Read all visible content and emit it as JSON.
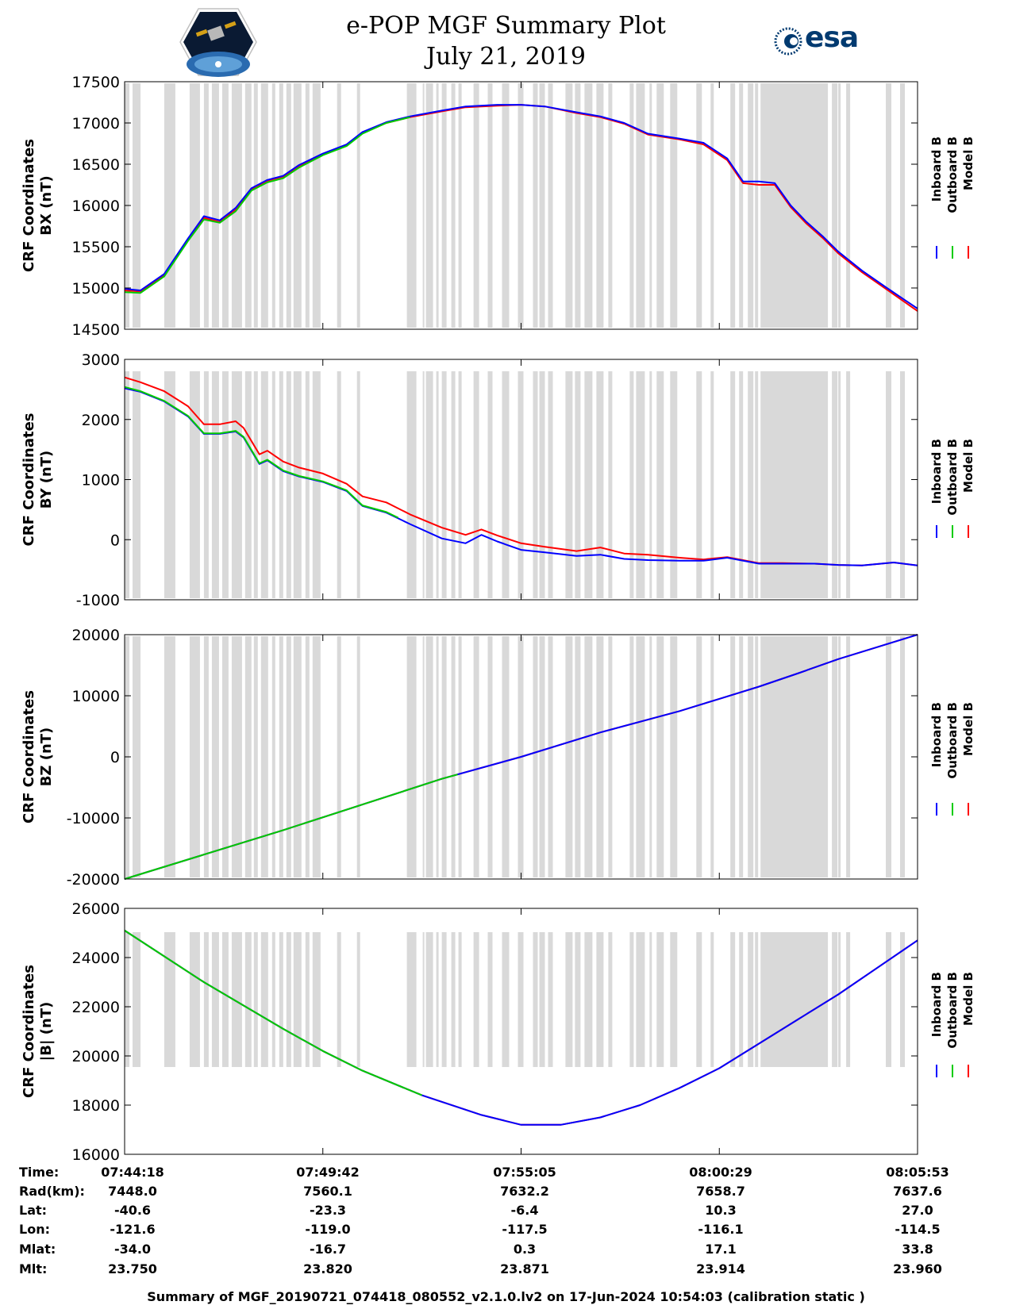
{
  "header": {
    "title": "e-POP MGF Summary Plot",
    "date": "July 21, 2019",
    "logo_left_icon": "cassiope-mission-logo-icon",
    "logo_right_text": "esa",
    "logo_right_icon": "esa-logo-icon"
  },
  "colors": {
    "inboard": "#0000ff",
    "outboard": "#00cc00",
    "model": "#ff0000",
    "shading": "#d9d9d9"
  },
  "chart_data": [
    {
      "type": "line",
      "ylabel1": "CRF Coordinates",
      "ylabel2": "BX (nT)",
      "yticks": [
        "14500",
        "15000",
        "15500",
        "16000",
        "16500",
        "17000",
        "17500"
      ],
      "ylim": [
        14500,
        17500
      ],
      "legend": [
        "Inboard B",
        "Outboard B",
        "Model B"
      ],
      "x": [
        0,
        0.02,
        0.05,
        0.08,
        0.1,
        0.12,
        0.14,
        0.16,
        0.18,
        0.2,
        0.22,
        0.25,
        0.28,
        0.3,
        0.33,
        0.36,
        0.4,
        0.43,
        0.47,
        0.5,
        0.53,
        0.57,
        0.6,
        0.63,
        0.66,
        0.7,
        0.73,
        0.76,
        0.78,
        0.8,
        0.82,
        0.84,
        0.86,
        0.88,
        0.9,
        0.93,
        0.96,
        1.0
      ],
      "series": [
        {
          "name": "Model B",
          "values": [
            14970,
            14960,
            15150,
            15580,
            15850,
            15800,
            15950,
            16200,
            16300,
            16350,
            16480,
            16620,
            16730,
            16880,
            17000,
            17070,
            17140,
            17190,
            17210,
            17220,
            17200,
            17120,
            17070,
            16990,
            16860,
            16800,
            16740,
            16550,
            16270,
            16250,
            16250,
            15980,
            15780,
            15610,
            15420,
            15190,
            14990,
            14720
          ]
        },
        {
          "name": "Inboard B",
          "values": [
            14990,
            14970,
            15170,
            15600,
            15870,
            15820,
            15970,
            16210,
            16310,
            16360,
            16490,
            16630,
            16740,
            16890,
            17010,
            17080,
            17150,
            17200,
            17220,
            17220,
            17200,
            17130,
            17080,
            17000,
            16870,
            16810,
            16760,
            16570,
            16290,
            16290,
            16270,
            16000,
            15800,
            15630,
            15440,
            15210,
            15010,
            14750
          ]
        },
        {
          "name": "Outboard B",
          "values": [
            14950,
            14940,
            15140,
            15570,
            15830,
            15790,
            15930,
            16180,
            16280,
            16330,
            16460,
            16610,
            16720,
            16870,
            17000,
            17070,
            17140,
            17190,
            17210,
            17220,
            17200,
            17120,
            17070,
            16990,
            16860,
            16800,
            16740,
            16550,
            16270,
            16250,
            16250,
            15980,
            15780,
            15610,
            15420,
            15190,
            14990,
            14720
          ]
        }
      ],
      "outboard_until": 0.36
    },
    {
      "type": "line",
      "ylabel1": "CRF Coordinates",
      "ylabel2": "BY (nT)",
      "yticks": [
        "-1000",
        "0",
        "1000",
        "2000",
        "3000"
      ],
      "ylim": [
        -1000,
        3000
      ],
      "legend": [
        "Inboard B",
        "Outboard B",
        "Model B"
      ],
      "x": [
        0,
        0.02,
        0.05,
        0.08,
        0.1,
        0.12,
        0.14,
        0.15,
        0.17,
        0.18,
        0.2,
        0.22,
        0.25,
        0.28,
        0.3,
        0.33,
        0.36,
        0.4,
        0.43,
        0.45,
        0.47,
        0.5,
        0.53,
        0.57,
        0.6,
        0.63,
        0.66,
        0.7,
        0.73,
        0.76,
        0.8,
        0.83,
        0.87,
        0.9,
        0.93,
        0.97,
        1.0
      ],
      "series": [
        {
          "name": "Model B",
          "values": [
            2700,
            2620,
            2470,
            2220,
            1920,
            1920,
            1970,
            1860,
            1420,
            1480,
            1300,
            1200,
            1100,
            930,
            720,
            620,
            420,
            200,
            80,
            170,
            70,
            -60,
            -120,
            -190,
            -130,
            -230,
            -250,
            -300,
            -330,
            -290,
            -390,
            -390,
            -400,
            -420,
            -430,
            -380,
            -430
          ]
        },
        {
          "name": "Inboard B",
          "values": [
            2520,
            2460,
            2300,
            2050,
            1760,
            1760,
            1800,
            1700,
            1260,
            1320,
            1140,
            1050,
            960,
            810,
            560,
            450,
            260,
            20,
            -60,
            80,
            -30,
            -170,
            -210,
            -270,
            -250,
            -320,
            -340,
            -350,
            -350,
            -300,
            -400,
            -400,
            -400,
            -420,
            -430,
            -380,
            -430
          ]
        },
        {
          "name": "Outboard B",
          "values": [
            2540,
            2470,
            2310,
            2060,
            1770,
            1770,
            1810,
            1710,
            1270,
            1330,
            1150,
            1060,
            970,
            820,
            570,
            460,
            270,
            30,
            -50,
            90,
            -20,
            -160,
            -200,
            -260,
            -240,
            -310,
            -330,
            -340,
            -340,
            -290,
            -390,
            -390,
            -390,
            -410,
            -420,
            -370,
            -420
          ]
        }
      ],
      "outboard_until": 0.345
    },
    {
      "type": "line",
      "ylabel1": "CRF Coordinates",
      "ylabel2": "BZ (nT)",
      "yticks": [
        "-20000",
        "-10000",
        "0",
        "10000",
        "20000"
      ],
      "ylim": [
        -20000,
        20000
      ],
      "legend": [
        "Inboard B",
        "Outboard B",
        "Model B"
      ],
      "x": [
        0,
        0.1,
        0.2,
        0.3,
        0.4,
        0.5,
        0.6,
        0.7,
        0.75,
        0.8,
        0.85,
        0.9,
        0.95,
        1.0
      ],
      "series": [
        {
          "name": "Model B",
          "values": [
            -20000,
            -16000,
            -12000,
            -7800,
            -3600,
            0,
            4000,
            7500,
            9500,
            11500,
            13700,
            16000,
            18000,
            20000
          ]
        },
        {
          "name": "Inboard B",
          "values": [
            -20000,
            -16000,
            -12000,
            -7800,
            -3600,
            0,
            4000,
            7500,
            9500,
            11500,
            13700,
            16000,
            18000,
            20000
          ]
        },
        {
          "name": "Outboard B",
          "values": [
            -20000,
            -16000,
            -12000,
            -7800,
            -3600,
            0,
            4000,
            7500,
            9500,
            11500,
            13700,
            16000,
            18000,
            20000
          ]
        }
      ],
      "outboard_until": 0.42
    },
    {
      "type": "line",
      "ylabel1": "CRF Coordinates",
      "ylabel2": "|B| (nT)",
      "yticks": [
        "16000",
        "18000",
        "20000",
        "22000",
        "24000",
        "26000"
      ],
      "ylim": [
        16000,
        26000
      ],
      "legend": [
        "Inboard B",
        "Outboard B",
        "Model B"
      ],
      "x": [
        0,
        0.1,
        0.2,
        0.25,
        0.3,
        0.375,
        0.45,
        0.5,
        0.55,
        0.6,
        0.65,
        0.7,
        0.75,
        0.8,
        0.85,
        0.9,
        0.95,
        1.0
      ],
      "series": [
        {
          "name": "Model B",
          "values": [
            25100,
            23000,
            21100,
            20200,
            19400,
            18400,
            17600,
            17200,
            17200,
            17500,
            18000,
            18700,
            19500,
            20500,
            21500,
            22500,
            23600,
            24700
          ]
        },
        {
          "name": "Inboard B",
          "values": [
            25100,
            23000,
            21100,
            20200,
            19400,
            18400,
            17600,
            17200,
            17200,
            17500,
            18000,
            18700,
            19500,
            20500,
            21500,
            22500,
            23600,
            24700
          ]
        },
        {
          "name": "Outboard B",
          "values": [
            25100,
            23000,
            21100,
            20200,
            19400,
            18400,
            17600,
            17200,
            17200,
            17500,
            18000,
            18700,
            19500,
            20500,
            21500,
            22500,
            23600,
            24700
          ]
        }
      ],
      "outboard_until": 0.375
    }
  ],
  "shading_intervals": [
    [
      0.0,
      0.006
    ],
    [
      0.01,
      0.02
    ],
    [
      0.05,
      0.064
    ],
    [
      0.082,
      0.095
    ],
    [
      0.1,
      0.106
    ],
    [
      0.11,
      0.119
    ],
    [
      0.123,
      0.131
    ],
    [
      0.135,
      0.148
    ],
    [
      0.152,
      0.16
    ],
    [
      0.163,
      0.168
    ],
    [
      0.172,
      0.181
    ],
    [
      0.186,
      0.19
    ],
    [
      0.195,
      0.2
    ],
    [
      0.204,
      0.21
    ],
    [
      0.213,
      0.223
    ],
    [
      0.228,
      0.233
    ],
    [
      0.237,
      0.247
    ],
    [
      0.268,
      0.273
    ],
    [
      0.293,
      0.297
    ],
    [
      0.356,
      0.368
    ],
    [
      0.376,
      0.378
    ],
    [
      0.38,
      0.389
    ],
    [
      0.393,
      0.396
    ],
    [
      0.4,
      0.406
    ],
    [
      0.412,
      0.417
    ],
    [
      0.421,
      0.425
    ],
    [
      0.44,
      0.447
    ],
    [
      0.458,
      0.464
    ],
    [
      0.476,
      0.485
    ],
    [
      0.496,
      0.503
    ],
    [
      0.515,
      0.521
    ],
    [
      0.523,
      0.53
    ],
    [
      0.534,
      0.54
    ],
    [
      0.556,
      0.565
    ],
    [
      0.568,
      0.575
    ],
    [
      0.58,
      0.59
    ],
    [
      0.595,
      0.604
    ],
    [
      0.61,
      0.615
    ],
    [
      0.637,
      0.642
    ],
    [
      0.645,
      0.656
    ],
    [
      0.662,
      0.665
    ],
    [
      0.671,
      0.68
    ],
    [
      0.688,
      0.697
    ],
    [
      0.721,
      0.728
    ],
    [
      0.739,
      0.743
    ],
    [
      0.764,
      0.77
    ],
    [
      0.775,
      0.78
    ],
    [
      0.786,
      0.793
    ],
    [
      0.795,
      0.799
    ],
    [
      0.802,
      0.887
    ],
    [
      0.892,
      0.899
    ],
    [
      0.9,
      0.903
    ],
    [
      0.91,
      0.915
    ],
    [
      0.96,
      0.967
    ],
    [
      0.978,
      0.984
    ]
  ],
  "xticks": [
    "07:44:18",
    "07:49:42",
    "07:55:05",
    "08:00:29",
    "08:05:53"
  ],
  "ephemeris": {
    "labels": [
      "Time:",
      "Rad(km):",
      "Lat:",
      "Lon:",
      "Mlat:",
      "Mlt:"
    ],
    "rows": [
      [
        "07:44:18",
        "07:49:42",
        "07:55:05",
        "08:00:29",
        "08:05:53"
      ],
      [
        "7448.0",
        "7560.1",
        "7632.2",
        "7658.7",
        "7637.6"
      ],
      [
        "-40.6",
        "-23.3",
        "-6.4",
        "10.3",
        "27.0"
      ],
      [
        "-121.6",
        "-119.0",
        "-117.5",
        "-116.1",
        "-114.5"
      ],
      [
        "-34.0",
        "-16.7",
        "0.3",
        "17.1",
        "33.8"
      ],
      [
        "23.750",
        "23.820",
        "23.871",
        "23.914",
        "23.960"
      ]
    ]
  },
  "footer": "Summary of MGF_20190721_074418_080552_v2.1.0.lv2 on 17-Jun-2024 10:54:03 (calibration static )"
}
